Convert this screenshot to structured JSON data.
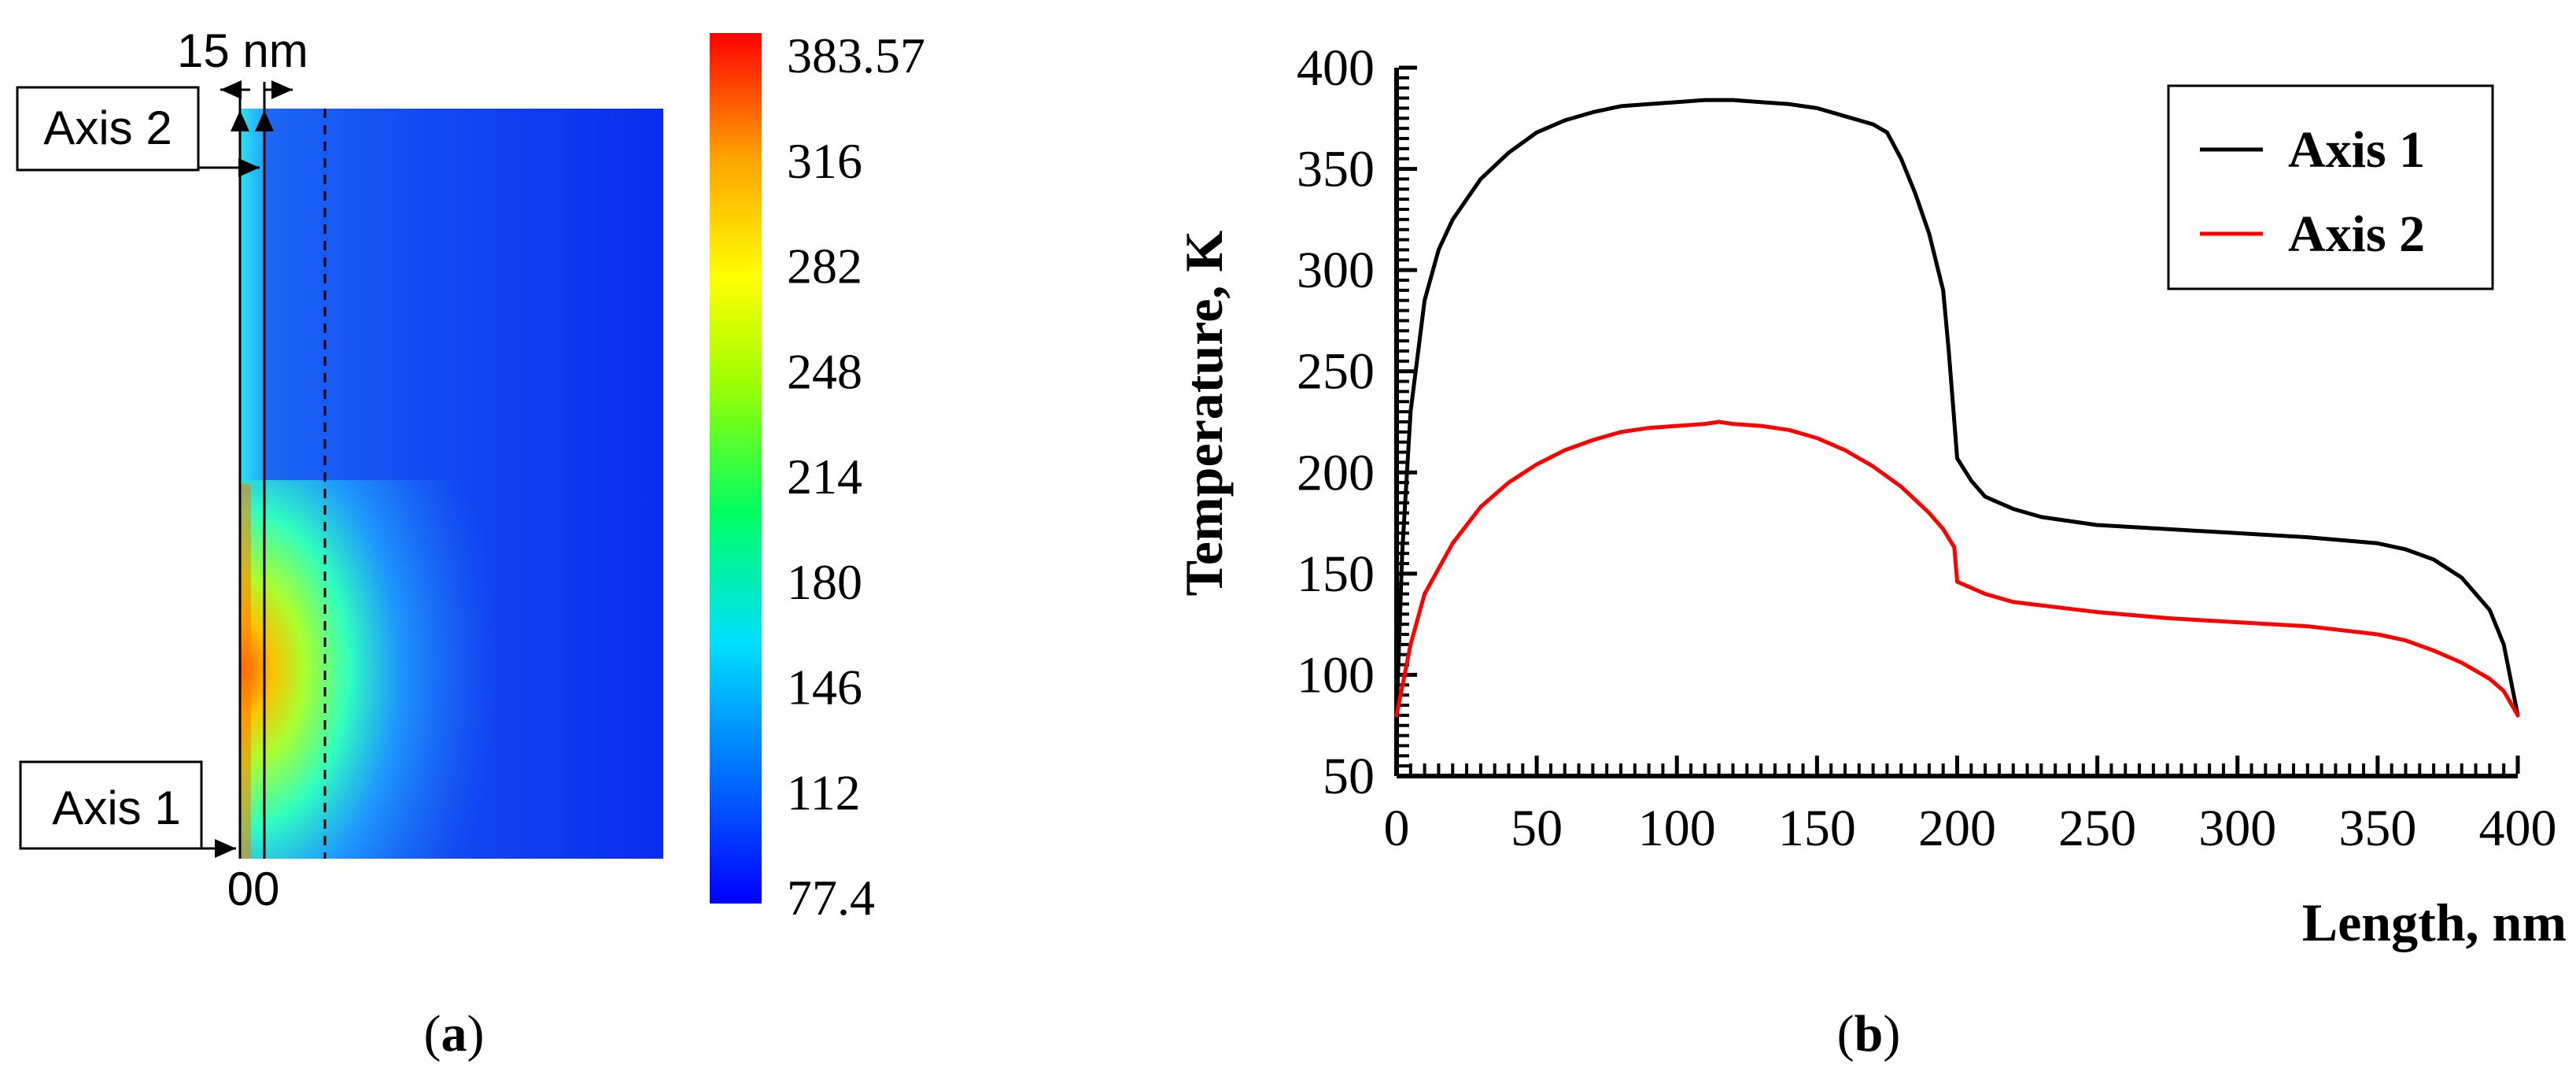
{
  "panel_a": {
    "caption_open": "(",
    "caption_letter": "a",
    "caption_close": ")",
    "width_annotation": "15 nm",
    "axis_labels": [
      "Axis 2",
      "Axis 1"
    ],
    "origin_label": "00",
    "colorbar": {
      "max_label": "383.57",
      "min_label": "77.4",
      "tick_labels": [
        "383.57",
        "316",
        "282",
        "248",
        "214",
        "180",
        "146",
        "112",
        "77.4"
      ],
      "range": [
        77.4,
        383.57
      ],
      "colormap": "rainbow",
      "colors": [
        "#0000ff",
        "#0070ff",
        "#00e0ff",
        "#00ff60",
        "#a0ff00",
        "#ffff00",
        "#ffa000",
        "#ff0000"
      ]
    }
  },
  "panel_b": {
    "caption_open": "(",
    "caption_letter": "b",
    "caption_close": ")"
  },
  "chart_data": {
    "type": "line",
    "xlabel": "Length, nm",
    "ylabel": "Temperature, K",
    "xlim": [
      0,
      400
    ],
    "ylim": [
      50,
      400
    ],
    "xticks": [
      0,
      50,
      100,
      150,
      200,
      250,
      300,
      350,
      400
    ],
    "yticks": [
      50,
      100,
      150,
      200,
      250,
      300,
      350,
      400
    ],
    "legend_position": "top-right",
    "grid": false,
    "series": [
      {
        "name": "Axis 1",
        "color": "#000000",
        "x": [
          0,
          2,
          5,
          10,
          15,
          20,
          30,
          40,
          50,
          60,
          70,
          80,
          90,
          100,
          110,
          120,
          130,
          140,
          150,
          160,
          170,
          175,
          180,
          185,
          190,
          195,
          197,
          199,
          200,
          205,
          210,
          220,
          230,
          250,
          275,
          300,
          325,
          350,
          360,
          370,
          380,
          390,
          395,
          400
        ],
        "y": [
          80,
          160,
          230,
          285,
          310,
          325,
          345,
          358,
          368,
          374,
          378,
          381,
          382,
          383,
          384,
          384,
          383,
          382,
          380,
          376,
          372,
          368,
          355,
          338,
          318,
          290,
          260,
          225,
          207,
          196,
          188,
          182,
          178,
          174,
          172,
          170,
          168,
          165,
          162,
          157,
          148,
          132,
          115,
          80
        ]
      },
      {
        "name": "Axis 2",
        "color": "#ff0000",
        "x": [
          0,
          5,
          10,
          20,
          30,
          40,
          50,
          60,
          70,
          80,
          90,
          100,
          110,
          115,
          120,
          130,
          140,
          150,
          160,
          170,
          180,
          190,
          195,
          199,
          200,
          210,
          220,
          250,
          275,
          300,
          325,
          350,
          360,
          370,
          380,
          390,
          395,
          400
        ],
        "y": [
          80,
          115,
          140,
          165,
          183,
          195,
          204,
          211,
          216,
          220,
          222,
          223,
          224,
          225,
          224,
          223,
          221,
          217,
          211,
          203,
          193,
          180,
          172,
          163,
          146,
          140,
          136,
          131,
          128,
          126,
          124,
          120,
          117,
          112,
          106,
          98,
          92,
          80
        ]
      }
    ]
  }
}
